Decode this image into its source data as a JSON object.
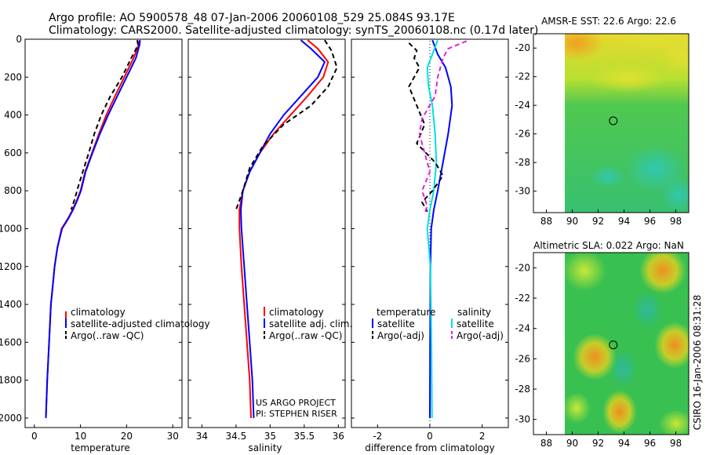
{
  "figure": {
    "title_line1": "Argo profile: AO 5900578_48 07-Jan-2006 20060108_529 25.084S 93.17E",
    "title_line2": "Climatology: CARS2000. Satellite-adjusted climatology: synTS_20060108.nc (0.17d later)",
    "credit": "CSIRO 16-Jan-2006 08:31:28",
    "project_line1": "US ARGO PROJECT",
    "project_line2": "PI: STEPHEN RISER"
  },
  "chart_data": [
    {
      "id": "temperature",
      "type": "line",
      "xlabel": "temperature",
      "xlim": [
        -2,
        32
      ],
      "ylim": [
        2050,
        0
      ],
      "xticks": [
        0,
        10,
        20,
        30
      ],
      "yticks": [
        0,
        200,
        400,
        600,
        800,
        1000,
        1200,
        1400,
        1600,
        1800,
        2000
      ],
      "legend": [
        "climatology",
        "satellite-adjusted climatology",
        "Argo(..raw -QC)"
      ],
      "series": [
        {
          "name": "climatology",
          "color": "#ff0000",
          "dash": "",
          "x": [
            22.8,
            22.6,
            21.5,
            19.5,
            17.5,
            15.6,
            14.0,
            12.5,
            11.0,
            10.0,
            9.2,
            8.3,
            7.2,
            5.9,
            5.0,
            4.4,
            4.0,
            3.6,
            3.2,
            2.8,
            2.5
          ],
          "y": [
            5,
            30,
            100,
            200,
            300,
            400,
            500,
            600,
            700,
            800,
            850,
            900,
            950,
            1000,
            1100,
            1200,
            1300,
            1400,
            1600,
            1800,
            2000
          ]
        },
        {
          "name": "satellite-adjusted climatology",
          "color": "#0000ff",
          "dash": "",
          "x": [
            22.9,
            22.8,
            22.0,
            20.0,
            18.0,
            16.0,
            14.2,
            12.6,
            11.1,
            10.1,
            9.3,
            8.4,
            7.3,
            6.0,
            5.0,
            4.4,
            4.0,
            3.6,
            3.2,
            2.8,
            2.5
          ],
          "y": [
            5,
            30,
            100,
            200,
            300,
            400,
            500,
            600,
            700,
            800,
            850,
            900,
            950,
            1000,
            1100,
            1200,
            1300,
            1400,
            1600,
            1800,
            2000
          ]
        },
        {
          "name": "Argo(..raw -QC)",
          "color": "#000000",
          "dash": "6,4",
          "x": [
            22.3,
            22.5,
            21.0,
            19.0,
            16.5,
            14.5,
            13.0,
            11.8,
            10.5,
            9.5,
            8.8,
            8.0
          ],
          "y": [
            5,
            30,
            100,
            200,
            300,
            400,
            500,
            600,
            700,
            780,
            840,
            900
          ]
        }
      ]
    },
    {
      "id": "salinity",
      "type": "line",
      "xlabel": "salinity",
      "xlim": [
        33.8,
        36.1
      ],
      "ylim": [
        2050,
        0
      ],
      "xticks": [
        34,
        34.5,
        35,
        35.5,
        36
      ],
      "xticklabels": [
        "34",
        "34.5",
        "35",
        "35.5",
        "36"
      ],
      "legend": [
        "climatology",
        "satellite adj. clim.",
        "Argo(..raw -QC)"
      ],
      "series": [
        {
          "name": "climatology",
          "color": "#ff0000",
          "dash": "",
          "x": [
            35.55,
            35.7,
            35.85,
            35.78,
            35.55,
            35.3,
            35.05,
            34.85,
            34.7,
            34.6,
            34.55,
            34.55,
            34.58,
            34.62,
            34.66,
            34.7,
            34.72
          ],
          "y": [
            5,
            50,
            120,
            200,
            300,
            400,
            500,
            600,
            700,
            800,
            900,
            1000,
            1200,
            1400,
            1600,
            1800,
            2000
          ]
        },
        {
          "name": "satellite adj. clim.",
          "color": "#0000ff",
          "dash": "",
          "x": [
            35.45,
            35.6,
            35.8,
            35.7,
            35.45,
            35.2,
            35.0,
            34.85,
            34.7,
            34.6,
            34.57,
            34.58,
            34.62,
            34.66,
            34.7,
            34.74,
            34.76
          ],
          "y": [
            5,
            50,
            120,
            200,
            300,
            400,
            500,
            600,
            700,
            800,
            900,
            1000,
            1200,
            1400,
            1600,
            1800,
            2000
          ]
        },
        {
          "name": "Argo(..raw -QC)",
          "color": "#000000",
          "dash": "6,4",
          "x": [
            35.8,
            35.9,
            35.98,
            35.85,
            35.6,
            35.2,
            34.9,
            34.7,
            34.6,
            34.5
          ],
          "y": [
            5,
            60,
            150,
            250,
            350,
            450,
            560,
            680,
            800,
            900
          ]
        }
      ]
    },
    {
      "id": "difference",
      "type": "line",
      "xlabel": "difference from climatology",
      "xlim": [
        -3,
        3
      ],
      "ylim": [
        2050,
        0
      ],
      "xticks": [
        -2,
        0,
        2
      ],
      "legend_temperature_title": "temperature",
      "legend_salinity_title": "salinity",
      "legend": [
        "satellite",
        "Argo(-adj)",
        "satellite",
        "Argo(-adj)"
      ],
      "series": [
        {
          "name": "temperature satellite",
          "color": "#0000ff",
          "dash": "",
          "x": [
            0.1,
            0.3,
            0.6,
            0.8,
            0.85,
            0.7,
            0.5,
            0.3,
            0.15,
            0.05,
            0.02,
            0.01,
            0.0
          ],
          "y": [
            5,
            80,
            150,
            250,
            350,
            500,
            650,
            800,
            900,
            1000,
            1200,
            1600,
            2000
          ]
        },
        {
          "name": "salinity satellite",
          "color": "#00e0e0",
          "dash": "",
          "x": [
            0.3,
            0.15,
            -0.1,
            -0.05,
            0.1,
            0.2,
            0.25,
            0.15,
            0.0,
            -0.1,
            0.02,
            0.06,
            0.08
          ],
          "y": [
            5,
            60,
            150,
            250,
            350,
            500,
            650,
            800,
            900,
            1000,
            1200,
            1600,
            2000
          ]
        },
        {
          "name": "temperature Argo(-adj)",
          "color": "#000000",
          "dash": "6,4",
          "x": [
            -0.8,
            -0.5,
            -0.6,
            -0.4,
            -0.8,
            -0.5,
            -0.2,
            -0.5,
            0.2,
            0.5,
            0.1,
            -0.3,
            -0.1
          ],
          "y": [
            20,
            60,
            100,
            150,
            250,
            350,
            450,
            550,
            650,
            720,
            800,
            860,
            910
          ]
        },
        {
          "name": "salinity Argo(-adj)",
          "color": "#e020e0",
          "dash": "6,4",
          "x": [
            1.4,
            0.7,
            0.5,
            0.3,
            0.2,
            -0.3,
            -0.4,
            -0.2,
            0.0,
            -0.3,
            -0.1,
            -0.2
          ],
          "y": [
            10,
            50,
            100,
            200,
            300,
            420,
            500,
            600,
            700,
            800,
            880,
            920
          ]
        }
      ]
    },
    {
      "id": "amsr_sst",
      "type": "heatmap",
      "title": "AMSR-E SST: 22.6  Argo: 22.6",
      "xlim": [
        87,
        99
      ],
      "ylim": [
        -31.5,
        -19
      ],
      "xticks": [
        88,
        90,
        92,
        94,
        96,
        98
      ],
      "yticks": [
        -20,
        -22,
        -24,
        -26,
        -28,
        -30
      ],
      "data_extent": {
        "lon": [
          90,
          99
        ],
        "lat": [
          -31.5,
          -19
        ]
      },
      "marker": {
        "lon": 93.17,
        "lat": -25.084
      }
    },
    {
      "id": "altimetric_sla",
      "type": "heatmap",
      "title": "Altimetric SLA: 0.022  Argo: NaN",
      "xlim": [
        87,
        99
      ],
      "ylim": [
        -31,
        -19
      ],
      "xticks": [
        88,
        90,
        92,
        94,
        96,
        98
      ],
      "yticks": [
        -20,
        -22,
        -24,
        -26,
        -28,
        -30
      ],
      "data_extent": {
        "lon": [
          90,
          99
        ],
        "lat": [
          -31,
          -19
        ]
      },
      "marker": {
        "lon": 93.17,
        "lat": -25.084
      }
    }
  ]
}
